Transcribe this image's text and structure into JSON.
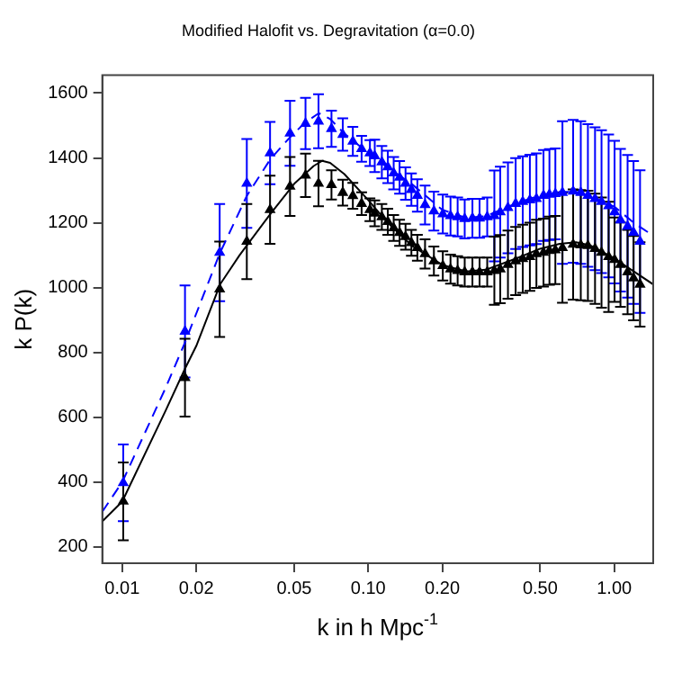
{
  "chart_data": {
    "type": "scatter",
    "title": "Modified Halofit vs. Degravitation (α=0.0)",
    "xlabel": "k in h Mpc$^{-1}$",
    "ylabel": "k P(k)",
    "log": "x",
    "grid": false,
    "legend": false,
    "xlim": [
      0.0083,
      1.44
    ],
    "ylim": [
      150,
      1655
    ],
    "xticks": [
      0.01,
      0.02,
      0.05,
      {
        "value": 0.1,
        "label": "0.10"
      },
      {
        "value": 0.2,
        "label": "0.20"
      },
      {
        "value": 0.5,
        "label": "0.50"
      },
      {
        "value": 1,
        "label": "1.00"
      }
    ],
    "yticks": [
      200,
      400,
      600,
      800,
      1000,
      1200,
      1400,
      1600
    ],
    "series": [
      {
        "color": "#0000ff",
        "marker": "triangle",
        "x": [
          0.0101,
          0.018,
          0.0249,
          0.0321,
          0.0399,
          0.0481,
          0.0556,
          0.0628,
          0.0709,
          0.0788,
          0.0866,
          0.094,
          0.1016,
          0.1063,
          0.1136,
          0.1201,
          0.1269,
          0.1341,
          0.1418,
          0.1498,
          0.1584,
          0.1702,
          0.1849,
          0.201,
          0.216,
          0.2309,
          0.2467,
          0.2652,
          0.2835,
          0.3046,
          0.3256,
          0.3441,
          0.3698,
          0.3974,
          0.4247,
          0.454,
          0.4827,
          0.5158,
          0.5452,
          0.5763,
          0.6158,
          0.6806,
          0.7311,
          0.7815,
          0.8354,
          0.8877,
          0.9488,
          1.003,
          1.06,
          1.133,
          1.198,
          1.273
        ],
        "values": [
          398,
          865,
          1108,
          1321,
          1415,
          1476,
          1506,
          1513,
          1490,
          1472,
          1451,
          1428,
          1415,
          1406,
          1387,
          1372,
          1353,
          1340,
          1321,
          1302,
          1284,
          1255,
          1236,
          1227,
          1221,
          1218,
          1212,
          1214,
          1214,
          1218,
          1221,
          1233,
          1246,
          1259,
          1265,
          1270,
          1274,
          1284,
          1287,
          1289,
          1293,
          1297,
          1293,
          1284,
          1274,
          1265,
          1252,
          1233,
          1208,
          1189,
          1170,
          1142
        ],
        "errors": [
          118,
          142,
          150,
          137,
          96,
          100,
          79,
          83,
          56,
          50,
          45,
          40,
          40,
          50,
          50,
          50,
          50,
          50,
          50,
          50,
          50,
          60,
          60,
          60,
          60,
          60,
          60,
          60,
          60,
          60,
          140,
          140,
          140,
          140,
          140,
          140,
          140,
          140,
          140,
          140,
          220,
          220,
          220,
          220,
          220,
          220,
          220,
          220,
          220,
          220,
          220,
          220
        ]
      },
      {
        "color": "#000000",
        "marker": "triangle",
        "x": [
          0.0101,
          0.018,
          0.0249,
          0.0321,
          0.0399,
          0.0481,
          0.0556,
          0.0628,
          0.0709,
          0.0788,
          0.0866,
          0.094,
          0.1016,
          0.1063,
          0.1136,
          0.1201,
          0.1269,
          0.1341,
          0.1418,
          0.1498,
          0.1584,
          0.1702,
          0.1849,
          0.201,
          0.216,
          0.2309,
          0.2467,
          0.2652,
          0.2835,
          0.3046,
          0.3256,
          0.3441,
          0.3698,
          0.3974,
          0.4247,
          0.454,
          0.4827,
          0.5158,
          0.5452,
          0.5763,
          0.6158,
          0.6806,
          0.7311,
          0.7815,
          0.8354,
          0.8877,
          0.9488,
          1.003,
          1.06,
          1.133,
          1.198,
          1.273
        ],
        "values": [
          341,
          722,
          995,
          1142,
          1240,
          1312,
          1346,
          1321,
          1317,
          1293,
          1283,
          1259,
          1240,
          1229,
          1218,
          1203,
          1184,
          1169,
          1157,
          1138,
          1123,
          1104,
          1082,
          1067,
          1057,
          1052,
          1048,
          1048,
          1048,
          1048,
          1052,
          1057,
          1071,
          1082,
          1089,
          1095,
          1104,
          1108,
          1114,
          1116,
          1123,
          1133,
          1131,
          1129,
          1120,
          1108,
          1095,
          1086,
          1071,
          1048,
          1029,
          1010
        ],
        "errors": [
          120,
          120,
          147,
          116,
          105,
          91,
          67,
          70,
          45,
          40,
          40,
          35,
          35,
          40,
          40,
          40,
          40,
          40,
          40,
          40,
          40,
          45,
          45,
          45,
          45,
          45,
          45,
          45,
          45,
          45,
          105,
          105,
          105,
          105,
          105,
          105,
          105,
          105,
          105,
          105,
          170,
          170,
          170,
          170,
          170,
          170,
          170,
          130,
          130,
          130,
          130,
          130
        ]
      },
      {
        "type": "line",
        "color": "#0000ff",
        "marker": "none",
        "line_style": "dashed",
        "x": [
          0.0083,
          0.01,
          0.015,
          0.018,
          0.0249,
          0.0321,
          0.04,
          0.048,
          0.0556,
          0.063,
          0.07,
          0.08,
          0.1,
          0.12,
          0.15,
          0.2,
          0.25,
          0.3,
          0.4,
          0.5,
          0.6,
          0.7,
          0.8,
          1.0,
          1.2,
          1.44
        ],
        "values": [
          309,
          400,
          690,
          831,
          1105,
          1283,
          1396,
          1463,
          1510,
          1538,
          1520,
          1475,
          1415,
          1370,
          1320,
          1240,
          1215,
          1220,
          1260,
          1285,
          1295,
          1295,
          1280,
          1250,
          1200,
          1160
        ]
      },
      {
        "type": "line",
        "color": "#000000",
        "marker": "none",
        "line_style": "solid",
        "x": [
          0.0083,
          0.01,
          0.015,
          0.018,
          0.02,
          0.025,
          0.03,
          0.04,
          0.05,
          0.06,
          0.065,
          0.07,
          0.08,
          0.1,
          0.12,
          0.15,
          0.2,
          0.25,
          0.3,
          0.4,
          0.5,
          0.6,
          0.7,
          0.8,
          1.0,
          1.2,
          1.44
        ],
        "values": [
          279,
          340,
          620,
          750,
          820,
          1010,
          1100,
          1227,
          1320,
          1375,
          1391,
          1385,
          1350,
          1270,
          1200,
          1130,
          1070,
          1050,
          1055,
          1090,
          1120,
          1135,
          1140,
          1130,
          1090,
          1050,
          1010
        ]
      }
    ]
  }
}
